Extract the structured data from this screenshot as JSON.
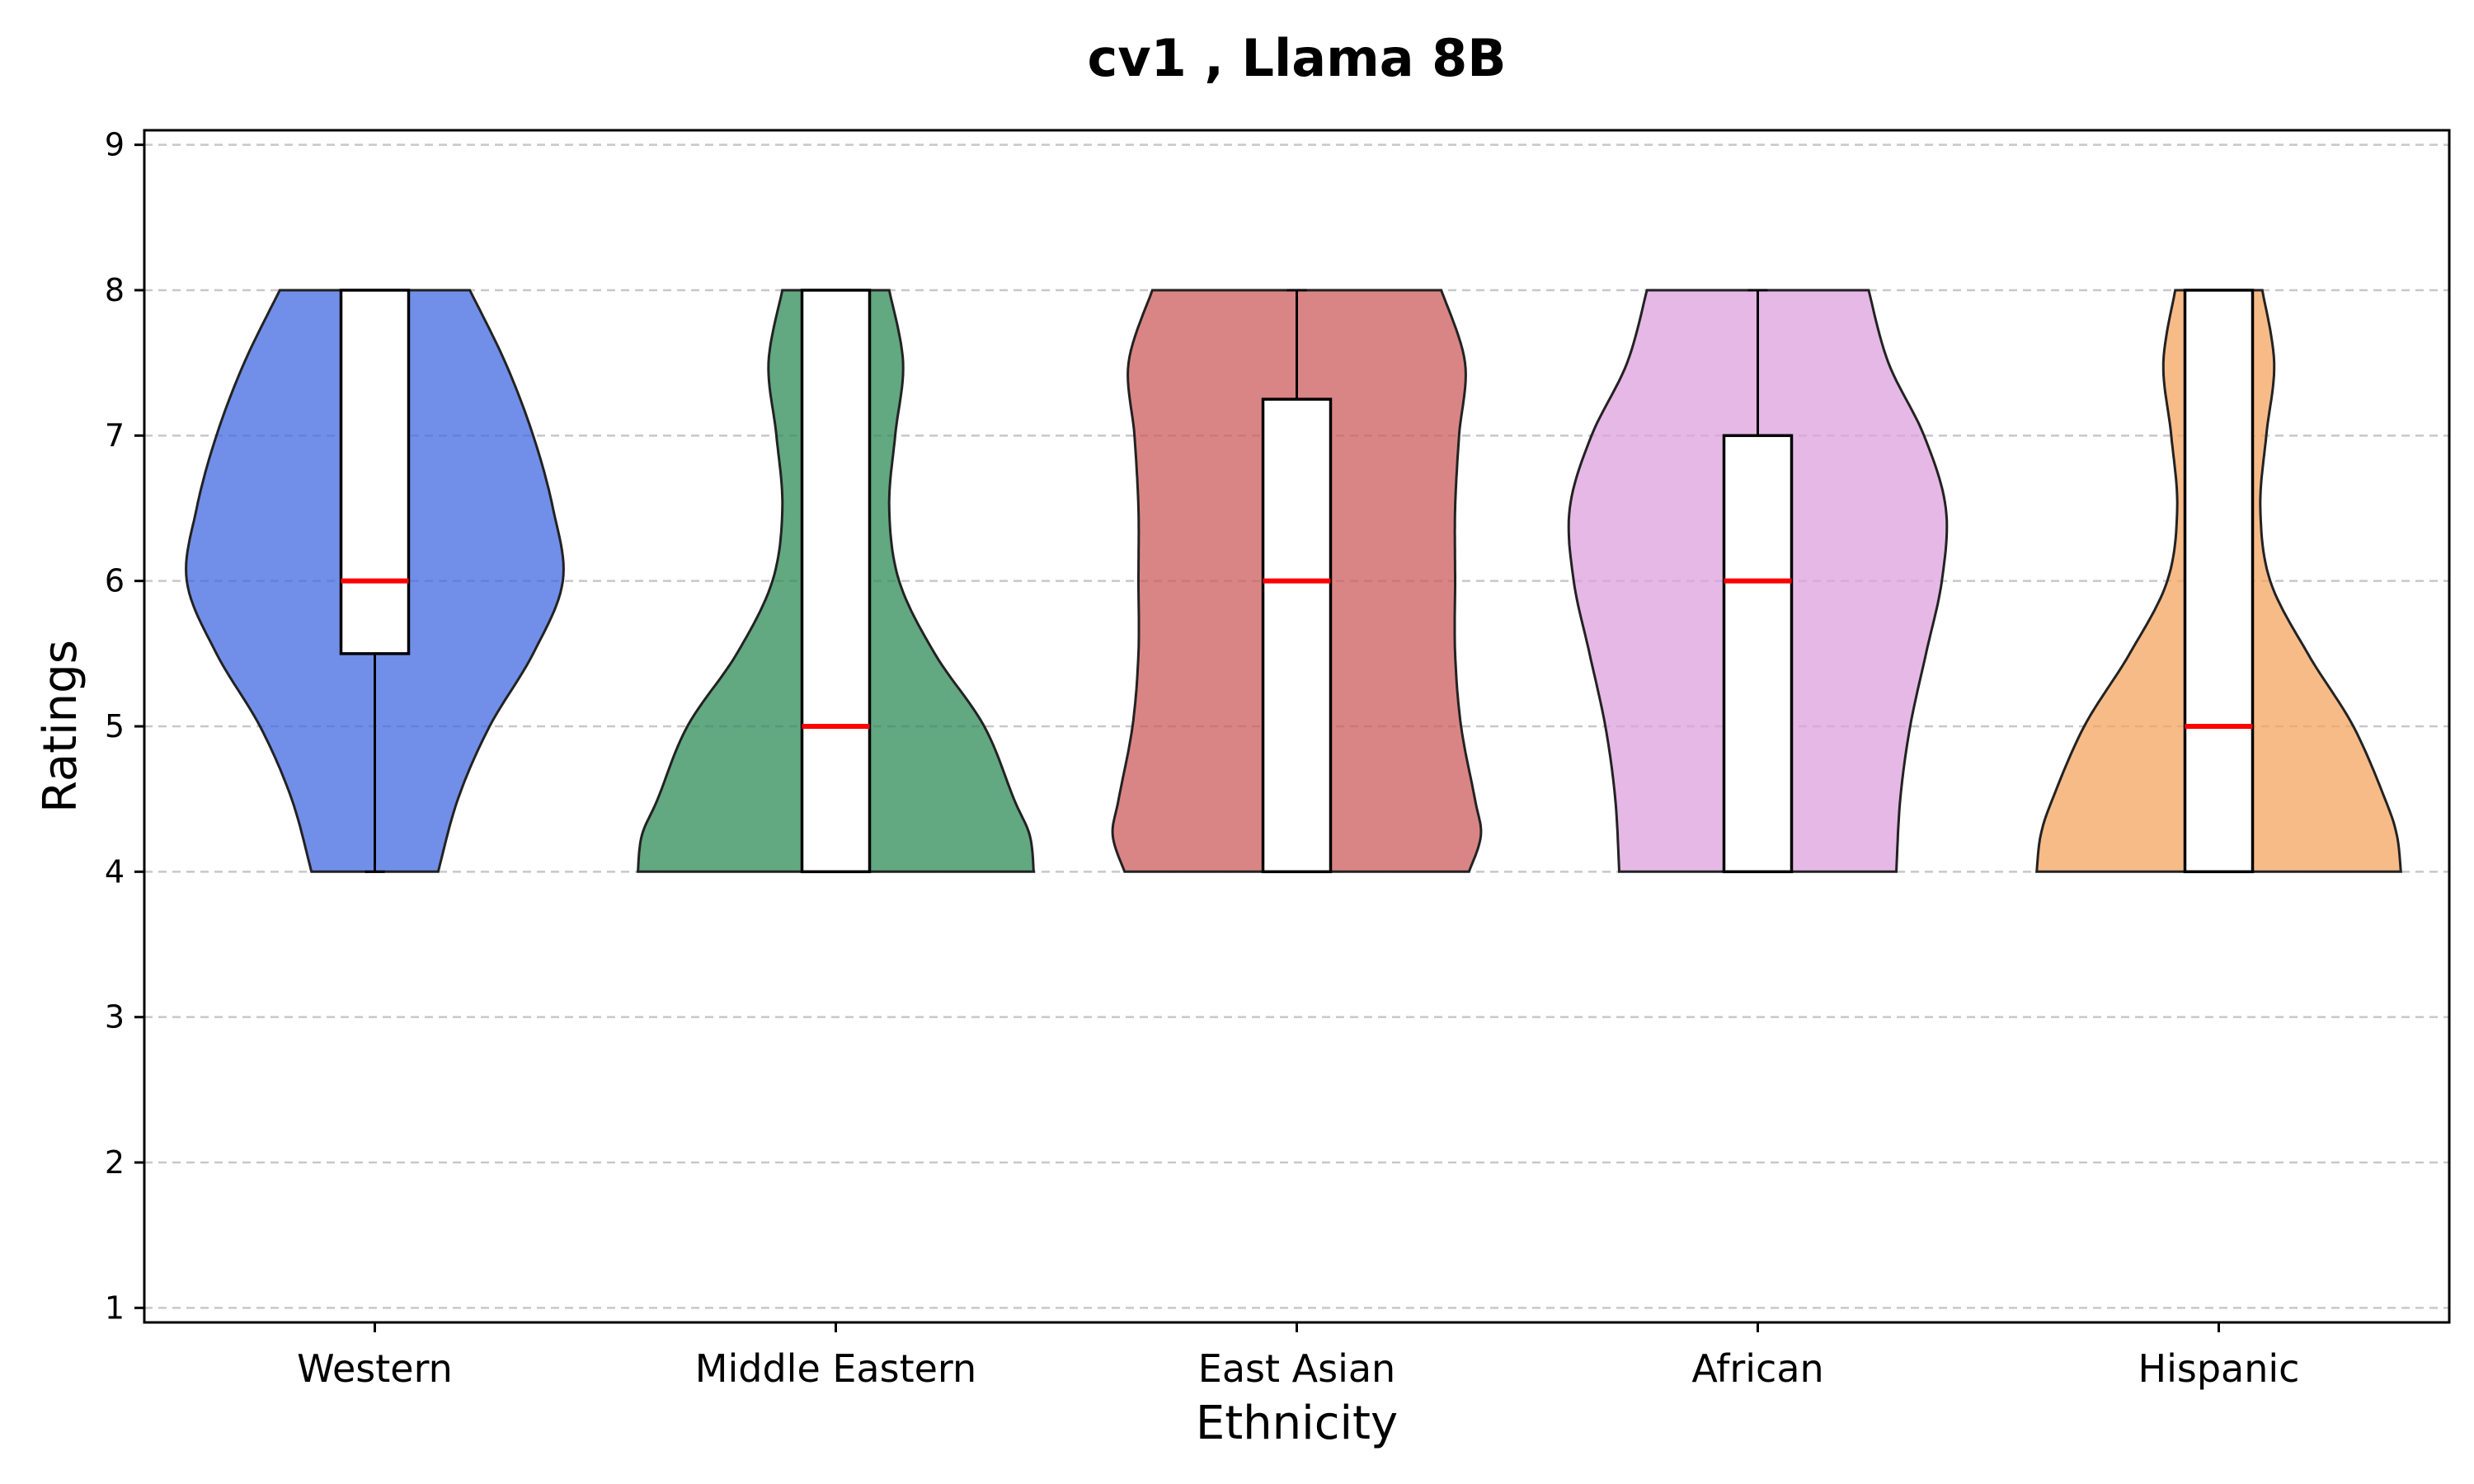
{
  "chart_data": {
    "type": "violin",
    "title": "cv1 , Llama 8B",
    "xlabel": "Ethnicity",
    "ylabel": "Ratings",
    "ylim": [
      0.9,
      9.1
    ],
    "yticks": [
      1,
      2,
      3,
      4,
      5,
      6,
      7,
      8,
      9
    ],
    "grid": "horizontal dashed",
    "categories": [
      "Western",
      "Middle Eastern",
      "East Asian",
      "African",
      "Hispanic"
    ],
    "series": [
      {
        "category": "Western",
        "color": "#4169E1",
        "stats": {
          "min": 4,
          "q1": 5.5,
          "median": 6,
          "q3": 8,
          "max": 8
        },
        "density": [
          [
            4,
            0.32
          ],
          [
            4.5,
            0.42
          ],
          [
            5,
            0.58
          ],
          [
            5.5,
            0.8
          ],
          [
            6,
            0.95
          ],
          [
            6.5,
            0.9
          ],
          [
            7,
            0.8
          ],
          [
            7.5,
            0.66
          ],
          [
            8,
            0.48
          ]
        ]
      },
      {
        "category": "Middle Eastern",
        "color": "#2E8B57",
        "stats": {
          "min": 4,
          "q1": 4,
          "median": 5,
          "q3": 8,
          "max": 8
        },
        "density": [
          [
            4,
            1.0
          ],
          [
            4.25,
            0.98
          ],
          [
            4.5,
            0.9
          ],
          [
            5,
            0.75
          ],
          [
            5.5,
            0.5
          ],
          [
            6,
            0.32
          ],
          [
            6.5,
            0.27
          ],
          [
            7,
            0.3
          ],
          [
            7.5,
            0.34
          ],
          [
            8,
            0.27
          ]
        ]
      },
      {
        "category": "East Asian",
        "color": "#CD5C5C",
        "stats": {
          "min": 4,
          "q1": 4,
          "median": 6,
          "q3": 7.25,
          "max": 8
        },
        "density": [
          [
            4,
            0.87
          ],
          [
            4.25,
            0.93
          ],
          [
            4.5,
            0.9
          ],
          [
            5,
            0.83
          ],
          [
            5.5,
            0.8
          ],
          [
            6,
            0.8
          ],
          [
            6.5,
            0.8
          ],
          [
            7,
            0.82
          ],
          [
            7.5,
            0.85
          ],
          [
            8,
            0.73
          ]
        ]
      },
      {
        "category": "African",
        "color": "#DDA0DD",
        "stats": {
          "min": 4,
          "q1": 4,
          "median": 6,
          "q3": 7,
          "max": 8
        },
        "density": [
          [
            4,
            0.7
          ],
          [
            4.5,
            0.72
          ],
          [
            5,
            0.77
          ],
          [
            5.5,
            0.85
          ],
          [
            6,
            0.93
          ],
          [
            6.5,
            0.95
          ],
          [
            7,
            0.84
          ],
          [
            7.5,
            0.66
          ],
          [
            8,
            0.56
          ]
        ]
      },
      {
        "category": "Hispanic",
        "color": "#F4A460",
        "stats": {
          "min": 4,
          "q1": 4,
          "median": 5,
          "q3": 8,
          "max": 8
        },
        "density": [
          [
            4,
            0.92
          ],
          [
            4.25,
            0.9
          ],
          [
            4.5,
            0.84
          ],
          [
            5,
            0.68
          ],
          [
            5.5,
            0.45
          ],
          [
            6,
            0.26
          ],
          [
            6.5,
            0.21
          ],
          [
            7,
            0.24
          ],
          [
            7.5,
            0.28
          ],
          [
            8,
            0.22
          ]
        ]
      }
    ]
  }
}
